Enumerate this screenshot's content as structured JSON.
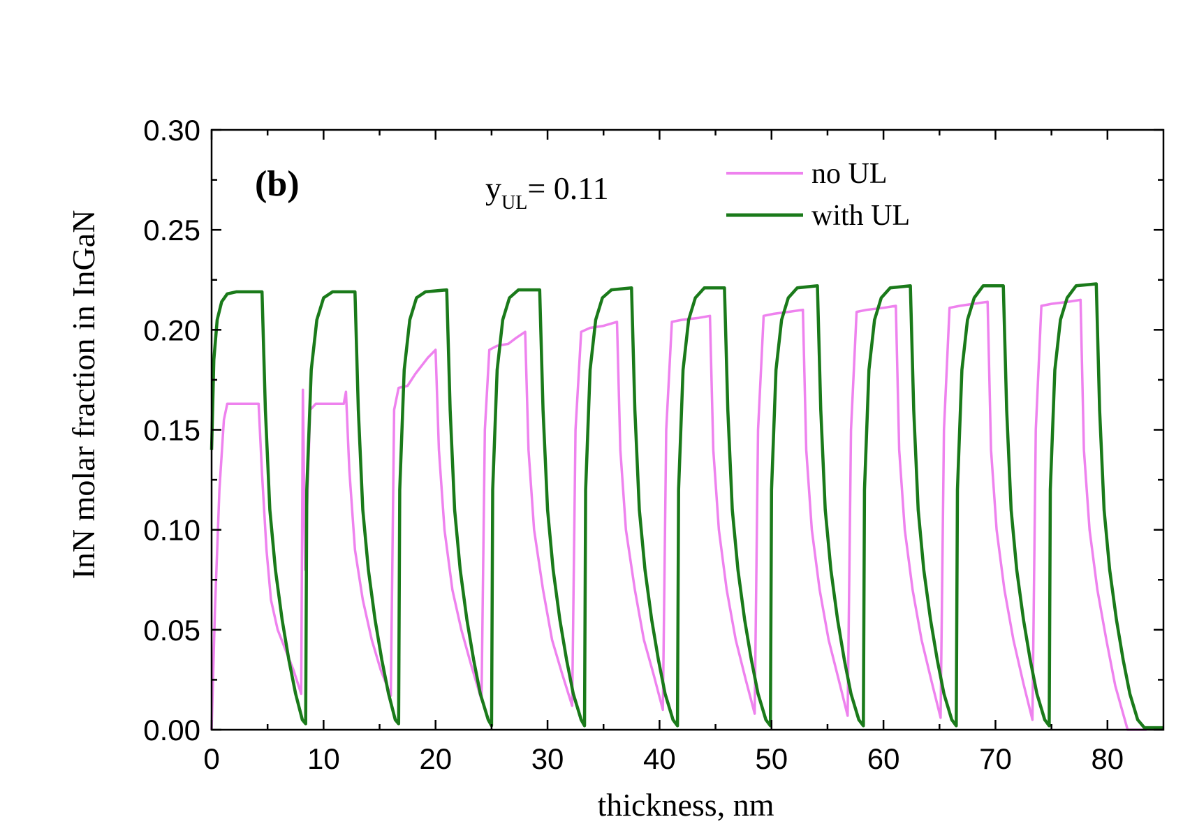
{
  "chart_data": {
    "type": "line",
    "panel_label": "(b)",
    "annotation": {
      "main": "y",
      "subscript": "UL",
      "rest": "= 0.11"
    },
    "xlabel": "thickness, nm",
    "ylabel": "InN molar fraction in InGaN",
    "xlim": [
      0,
      85
    ],
    "ylim": [
      0,
      0.3
    ],
    "xticks": [
      "0",
      "10",
      "20",
      "30",
      "40",
      "50",
      "60",
      "70",
      "80"
    ],
    "yticks": [
      "0.00",
      "0.05",
      "0.10",
      "0.15",
      "0.20",
      "0.25",
      "0.30"
    ],
    "legend_position": "top-right",
    "series": [
      {
        "name": "no UL",
        "color": "#ee82ee",
        "points": [
          [
            0,
            0
          ],
          [
            0.3,
            0.06
          ],
          [
            0.7,
            0.12
          ],
          [
            1.1,
            0.155
          ],
          [
            1.4,
            0.163
          ],
          [
            4.2,
            0.163
          ],
          [
            4.5,
            0.128
          ],
          [
            4.9,
            0.09
          ],
          [
            5.3,
            0.065
          ],
          [
            5.9,
            0.05
          ],
          [
            6.6,
            0.04
          ],
          [
            7.3,
            0.03
          ],
          [
            8.0,
            0.018
          ],
          [
            8.15,
            0.17
          ],
          [
            8.35,
            0.08
          ],
          [
            8.8,
            0.16
          ],
          [
            9.3,
            0.163
          ],
          [
            11.8,
            0.163
          ],
          [
            12.0,
            0.169
          ],
          [
            12.3,
            0.13
          ],
          [
            12.8,
            0.09
          ],
          [
            13.5,
            0.065
          ],
          [
            14.3,
            0.045
          ],
          [
            15.1,
            0.03
          ],
          [
            16.0,
            0.017
          ],
          [
            16.3,
            0.16
          ],
          [
            16.7,
            0.171
          ],
          [
            17.5,
            0.172
          ],
          [
            18.2,
            0.178
          ],
          [
            19.3,
            0.186
          ],
          [
            20.0,
            0.19
          ],
          [
            20.3,
            0.14
          ],
          [
            20.8,
            0.1
          ],
          [
            21.5,
            0.07
          ],
          [
            22.3,
            0.05
          ],
          [
            23.2,
            0.032
          ],
          [
            24.1,
            0.015
          ],
          [
            24.4,
            0.15
          ],
          [
            24.8,
            0.19
          ],
          [
            25.5,
            0.192
          ],
          [
            26.5,
            0.193
          ],
          [
            27.2,
            0.196
          ],
          [
            28.0,
            0.199
          ],
          [
            28.3,
            0.14
          ],
          [
            28.8,
            0.1
          ],
          [
            29.6,
            0.07
          ],
          [
            30.4,
            0.045
          ],
          [
            31.3,
            0.028
          ],
          [
            32.2,
            0.012
          ],
          [
            32.5,
            0.15
          ],
          [
            33.0,
            0.199
          ],
          [
            33.8,
            0.201
          ],
          [
            35.0,
            0.202
          ],
          [
            36.2,
            0.204
          ],
          [
            36.5,
            0.14
          ],
          [
            37.0,
            0.1
          ],
          [
            37.8,
            0.07
          ],
          [
            38.6,
            0.045
          ],
          [
            39.5,
            0.027
          ],
          [
            40.3,
            0.01
          ],
          [
            40.6,
            0.15
          ],
          [
            41.1,
            0.204
          ],
          [
            42.0,
            0.205
          ],
          [
            43.5,
            0.206
          ],
          [
            44.5,
            0.207
          ],
          [
            44.8,
            0.14
          ],
          [
            45.3,
            0.1
          ],
          [
            46.0,
            0.07
          ],
          [
            46.8,
            0.045
          ],
          [
            47.7,
            0.025
          ],
          [
            48.5,
            0.008
          ],
          [
            48.8,
            0.15
          ],
          [
            49.3,
            0.207
          ],
          [
            50.2,
            0.208
          ],
          [
            51.5,
            0.209
          ],
          [
            52.8,
            0.21
          ],
          [
            53.1,
            0.14
          ],
          [
            53.6,
            0.1
          ],
          [
            54.3,
            0.07
          ],
          [
            55.1,
            0.045
          ],
          [
            56.0,
            0.025
          ],
          [
            56.8,
            0.007
          ],
          [
            57.1,
            0.15
          ],
          [
            57.6,
            0.209
          ],
          [
            58.5,
            0.21
          ],
          [
            60.0,
            0.211
          ],
          [
            61.1,
            0.212
          ],
          [
            61.4,
            0.14
          ],
          [
            61.9,
            0.1
          ],
          [
            62.6,
            0.07
          ],
          [
            63.4,
            0.045
          ],
          [
            64.3,
            0.024
          ],
          [
            65.1,
            0.006
          ],
          [
            65.4,
            0.15
          ],
          [
            65.9,
            0.211
          ],
          [
            66.8,
            0.212
          ],
          [
            68.0,
            0.213
          ],
          [
            69.3,
            0.214
          ],
          [
            69.6,
            0.14
          ],
          [
            70.1,
            0.1
          ],
          [
            70.8,
            0.07
          ],
          [
            71.6,
            0.045
          ],
          [
            72.5,
            0.023
          ],
          [
            73.3,
            0.005
          ],
          [
            73.6,
            0.15
          ],
          [
            74.1,
            0.212
          ],
          [
            75.0,
            0.213
          ],
          [
            76.5,
            0.214
          ],
          [
            77.6,
            0.215
          ],
          [
            77.9,
            0.14
          ],
          [
            78.4,
            0.1
          ],
          [
            79.1,
            0.07
          ],
          [
            79.9,
            0.045
          ],
          [
            80.7,
            0.022
          ],
          [
            81.4,
            0.008
          ],
          [
            81.8,
            0
          ],
          [
            83.5,
            0
          ]
        ]
      },
      {
        "name": "with UL",
        "color": "#1a7a1a",
        "points": [
          [
            0,
            0.14
          ],
          [
            0.2,
            0.185
          ],
          [
            0.5,
            0.205
          ],
          [
            0.9,
            0.214
          ],
          [
            1.4,
            0.218
          ],
          [
            2.2,
            0.219
          ],
          [
            4.5,
            0.219
          ],
          [
            4.8,
            0.16
          ],
          [
            5.2,
            0.11
          ],
          [
            5.7,
            0.08
          ],
          [
            6.3,
            0.055
          ],
          [
            6.9,
            0.035
          ],
          [
            7.5,
            0.018
          ],
          [
            8.1,
            0.005
          ],
          [
            8.4,
            0.003
          ],
          [
            8.5,
            0.12
          ],
          [
            8.9,
            0.18
          ],
          [
            9.4,
            0.205
          ],
          [
            10.0,
            0.216
          ],
          [
            10.8,
            0.219
          ],
          [
            12.8,
            0.219
          ],
          [
            13.1,
            0.16
          ],
          [
            13.5,
            0.11
          ],
          [
            14.0,
            0.08
          ],
          [
            14.6,
            0.055
          ],
          [
            15.2,
            0.035
          ],
          [
            15.8,
            0.018
          ],
          [
            16.4,
            0.005
          ],
          [
            16.7,
            0.003
          ],
          [
            16.8,
            0.12
          ],
          [
            17.2,
            0.18
          ],
          [
            17.7,
            0.205
          ],
          [
            18.3,
            0.216
          ],
          [
            19.1,
            0.219
          ],
          [
            21.0,
            0.22
          ],
          [
            21.3,
            0.16
          ],
          [
            21.7,
            0.11
          ],
          [
            22.2,
            0.08
          ],
          [
            22.8,
            0.055
          ],
          [
            23.4,
            0.035
          ],
          [
            24.0,
            0.018
          ],
          [
            24.7,
            0.005
          ],
          [
            25.0,
            0.002
          ],
          [
            25.1,
            0.12
          ],
          [
            25.5,
            0.18
          ],
          [
            26.0,
            0.205
          ],
          [
            26.6,
            0.216
          ],
          [
            27.4,
            0.22
          ],
          [
            29.3,
            0.22
          ],
          [
            29.6,
            0.16
          ],
          [
            30.0,
            0.11
          ],
          [
            30.5,
            0.08
          ],
          [
            31.1,
            0.055
          ],
          [
            31.7,
            0.035
          ],
          [
            32.3,
            0.018
          ],
          [
            33.0,
            0.005
          ],
          [
            33.3,
            0.002
          ],
          [
            33.4,
            0.12
          ],
          [
            33.8,
            0.18
          ],
          [
            34.3,
            0.205
          ],
          [
            34.9,
            0.216
          ],
          [
            35.7,
            0.22
          ],
          [
            37.5,
            0.221
          ],
          [
            37.8,
            0.16
          ],
          [
            38.2,
            0.11
          ],
          [
            38.7,
            0.08
          ],
          [
            39.3,
            0.055
          ],
          [
            39.9,
            0.035
          ],
          [
            40.5,
            0.018
          ],
          [
            41.2,
            0.005
          ],
          [
            41.6,
            0.002
          ],
          [
            41.7,
            0.12
          ],
          [
            42.1,
            0.18
          ],
          [
            42.6,
            0.205
          ],
          [
            43.2,
            0.216
          ],
          [
            44.0,
            0.221
          ],
          [
            45.8,
            0.221
          ],
          [
            46.1,
            0.16
          ],
          [
            46.5,
            0.11
          ],
          [
            47.0,
            0.08
          ],
          [
            47.6,
            0.055
          ],
          [
            48.2,
            0.035
          ],
          [
            48.8,
            0.018
          ],
          [
            49.5,
            0.005
          ],
          [
            49.9,
            0.002
          ],
          [
            50.0,
            0.12
          ],
          [
            50.4,
            0.18
          ],
          [
            50.9,
            0.205
          ],
          [
            51.5,
            0.216
          ],
          [
            52.3,
            0.221
          ],
          [
            54.1,
            0.222
          ],
          [
            54.4,
            0.16
          ],
          [
            54.8,
            0.11
          ],
          [
            55.3,
            0.08
          ],
          [
            55.9,
            0.055
          ],
          [
            56.5,
            0.035
          ],
          [
            57.1,
            0.018
          ],
          [
            57.8,
            0.005
          ],
          [
            58.2,
            0.002
          ],
          [
            58.3,
            0.12
          ],
          [
            58.7,
            0.18
          ],
          [
            59.2,
            0.205
          ],
          [
            59.8,
            0.216
          ],
          [
            60.6,
            0.221
          ],
          [
            62.4,
            0.222
          ],
          [
            62.7,
            0.16
          ],
          [
            63.1,
            0.11
          ],
          [
            63.6,
            0.08
          ],
          [
            64.2,
            0.055
          ],
          [
            64.8,
            0.035
          ],
          [
            65.4,
            0.018
          ],
          [
            66.1,
            0.005
          ],
          [
            66.5,
            0.002
          ],
          [
            66.6,
            0.12
          ],
          [
            67.0,
            0.18
          ],
          [
            67.5,
            0.205
          ],
          [
            68.1,
            0.216
          ],
          [
            68.9,
            0.222
          ],
          [
            70.7,
            0.222
          ],
          [
            71.0,
            0.16
          ],
          [
            71.4,
            0.11
          ],
          [
            71.9,
            0.08
          ],
          [
            72.5,
            0.055
          ],
          [
            73.1,
            0.035
          ],
          [
            73.7,
            0.018
          ],
          [
            74.4,
            0.005
          ],
          [
            74.8,
            0.002
          ],
          [
            74.9,
            0.12
          ],
          [
            75.3,
            0.18
          ],
          [
            75.8,
            0.205
          ],
          [
            76.4,
            0.216
          ],
          [
            77.2,
            0.222
          ],
          [
            79.0,
            0.223
          ],
          [
            79.3,
            0.16
          ],
          [
            79.7,
            0.11
          ],
          [
            80.2,
            0.08
          ],
          [
            80.8,
            0.055
          ],
          [
            81.4,
            0.035
          ],
          [
            82.0,
            0.018
          ],
          [
            82.7,
            0.005
          ],
          [
            83.3,
            0.001
          ],
          [
            85,
            0.001
          ]
        ]
      }
    ]
  }
}
